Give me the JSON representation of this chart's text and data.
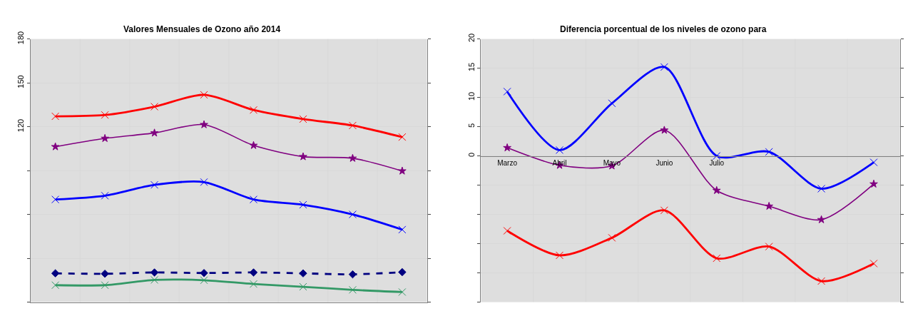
{
  "chart_data": [
    {
      "type": "line",
      "title": "Valores Mensuales de Ozono año 2014",
      "categories": [
        null,
        null,
        null,
        null,
        null,
        null,
        null,
        null
      ],
      "series": [
        {
          "color": "#0000ff",
          "marker": "cross",
          "line_style": "solid",
          "values": [
            70.2,
            72.8,
            80.2,
            82.1,
            70.2,
            66.6,
            60.0,
            49.6
          ]
        },
        {
          "color": "#ff0000",
          "marker": "cross",
          "line_style": "solid",
          "values": [
            127.1,
            128.0,
            133.7,
            141.8,
            131.4,
            125.2,
            120.8,
            112.9
          ]
        },
        {
          "color": "#339966",
          "marker": "cross",
          "line_style": "solid",
          "values": [
            11.6,
            11.6,
            15.2,
            15.0,
            12.4,
            10.5,
            8.4,
            6.9
          ]
        },
        {
          "color": "#800080",
          "marker": "star",
          "line_style": "solid",
          "values": [
            106.3,
            112.0,
            115.7,
            121.4,
            107.2,
            99.5,
            98.4,
            89.7
          ]
        },
        {
          "color": "#000080",
          "marker": "diamond",
          "line_style": "dashed",
          "values": [
            19.7,
            19.4,
            20.3,
            19.9,
            20.3,
            19.7,
            19.0,
            20.5
          ]
        }
      ],
      "ylim": [
        0,
        180
      ],
      "yticks": [
        {
          "value": 0,
          "label": null
        },
        {
          "value": 30,
          "label": null
        },
        {
          "value": 60,
          "label": null
        },
        {
          "value": 90,
          "label": null
        },
        120,
        150,
        180
      ],
      "grid": true,
      "tick_labels": "y"
    },
    {
      "type": "line",
      "title": "Diferencia porcentual de los niveles de ozono para",
      "categories": [
        "Marzo",
        "Abril",
        "Mayo",
        "Junio",
        "Julio",
        null,
        null,
        null
      ],
      "series": [
        {
          "color": "#0000ff",
          "marker": "cross",
          "line_style": "solid",
          "values": [
            11.0,
            1.0,
            9.0,
            15.2,
            0.0,
            0.7,
            -5.6,
            -1.1
          ]
        },
        {
          "color": "#ff0000",
          "marker": "cross",
          "line_style": "solid",
          "values": [
            -12.8,
            -17.0,
            -14.0,
            -9.3,
            -17.5,
            -15.5,
            -21.4,
            -18.4
          ]
        },
        {
          "color": "#800080",
          "marker": "star",
          "line_style": "solid",
          "values": [
            1.4,
            -1.6,
            -1.7,
            4.4,
            -5.9,
            -8.6,
            -10.9,
            -4.8
          ]
        }
      ],
      "ylim": [
        -25,
        20
      ],
      "yticks": [
        {
          "value": -25,
          "label": null
        },
        {
          "value": -20,
          "label": null
        },
        {
          "value": -15,
          "label": null
        },
        {
          "value": -10,
          "label": null
        },
        {
          "value": -5,
          "label": null
        },
        0,
        5,
        10,
        15,
        20
      ],
      "grid": true
    }
  ]
}
